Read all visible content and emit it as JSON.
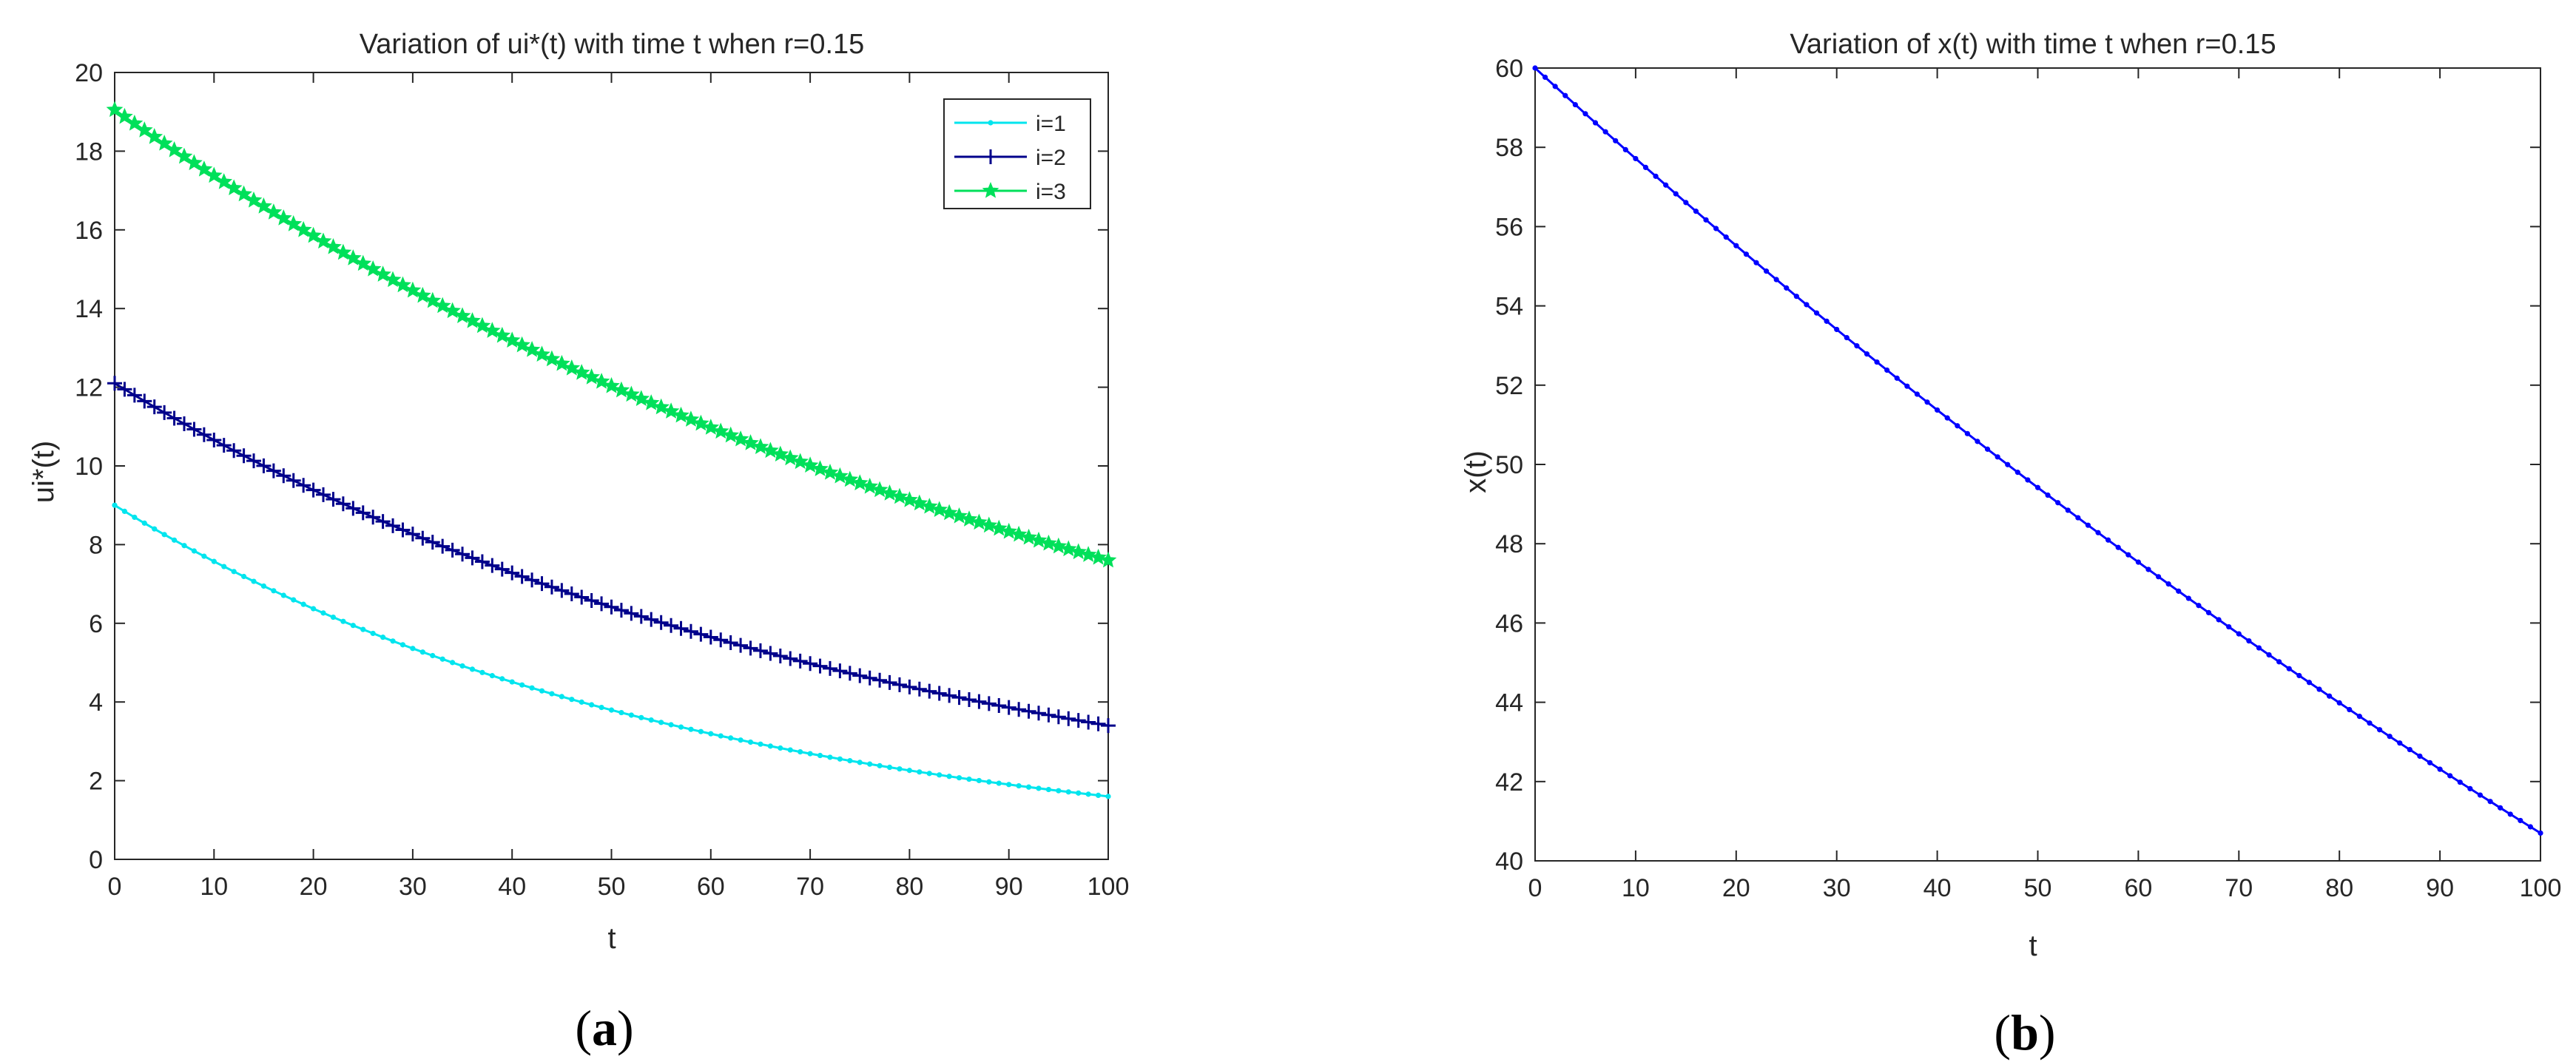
{
  "chart_data": [
    {
      "type": "line",
      "title": "Variation of ui*(t) with time t when r=0.15",
      "xlabel": "t",
      "ylabel": "ui*(t)",
      "panel_label": {
        "open": "(",
        "letter": "a",
        "close": ")"
      },
      "xlim": [
        0,
        100
      ],
      "ylim": [
        0,
        20
      ],
      "xticks": [
        "0",
        "10",
        "20",
        "30",
        "40",
        "50",
        "60",
        "70",
        "80",
        "90",
        "100"
      ],
      "yticks": [
        "0",
        "2",
        "4",
        "6",
        "8",
        "10",
        "12",
        "14",
        "16",
        "18",
        "20"
      ],
      "grid": false,
      "legend_position": "top-right",
      "series": [
        {
          "name": "i=1",
          "color": "#00e5ee",
          "marker": "dot",
          "start": 9.0,
          "end": 1.6
        },
        {
          "name": "i=2",
          "color": "#00008b",
          "marker": "plus",
          "start": 12.1,
          "end": 3.4
        },
        {
          "name": "i=3",
          "color": "#00e05a",
          "marker": "star",
          "start": 19.05,
          "end": 7.6
        }
      ]
    },
    {
      "type": "line",
      "title": "Variation of x(t) with time t when r=0.15",
      "xlabel": "t",
      "ylabel": "x(t)",
      "panel_label": {
        "open": "(",
        "letter": "b",
        "close": ")"
      },
      "xlim": [
        0,
        100
      ],
      "ylim": [
        40,
        60
      ],
      "xticks": [
        "0",
        "10",
        "20",
        "30",
        "40",
        "50",
        "60",
        "70",
        "80",
        "90",
        "100"
      ],
      "yticks": [
        "40",
        "42",
        "44",
        "46",
        "48",
        "50",
        "52",
        "54",
        "56",
        "58",
        "60"
      ],
      "grid": false,
      "series": [
        {
          "color": "#0000ff",
          "marker": "dot",
          "start": 60.0,
          "end": 40.7
        }
      ]
    }
  ]
}
